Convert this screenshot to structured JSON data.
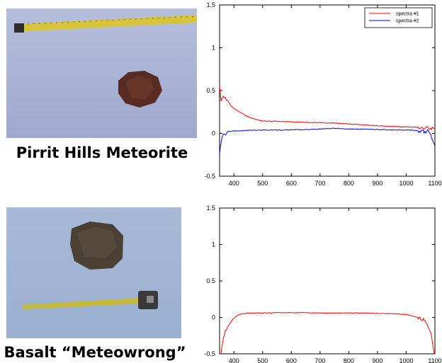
{
  "captions": {
    "top": "Pirrit Hills Meteorite",
    "bottom": "Basalt “Meteowrong”"
  },
  "photos": {
    "top": {
      "background": "#a7b2d3",
      "object_color": "#5a2b22",
      "tape_color": "#d8c63a"
    },
    "bottom": {
      "background": "#a3b5d4",
      "object_color": "#4a4034",
      "tape_color": "#c9bb3a"
    }
  },
  "chart_data": [
    {
      "type": "line",
      "title": "",
      "xlabel": "",
      "ylabel": "",
      "xlim": [
        350,
        1100
      ],
      "ylim": [
        -0.5,
        1.5
      ],
      "xticks": [
        400,
        500,
        600,
        700,
        800,
        900,
        1000,
        1100
      ],
      "yticks": [
        -0.5,
        0,
        0.5,
        1,
        1.5
      ],
      "ytick_labels": [
        "-0.5",
        "0",
        "0.5",
        "1",
        "1.5"
      ],
      "legend_position": "top-right",
      "series": [
        {
          "name": "spectra #1",
          "color": "#ff0000",
          "x": [
            350,
            355,
            360,
            370,
            380,
            390,
            400,
            410,
            420,
            440,
            460,
            480,
            500,
            550,
            600,
            650,
            700,
            750,
            800,
            850,
            900,
            950,
            1000,
            1050,
            1080,
            1100
          ],
          "y": [
            0.55,
            0.38,
            0.42,
            0.4,
            0.37,
            0.32,
            0.29,
            0.27,
            0.25,
            0.21,
            0.18,
            0.16,
            0.145,
            0.14,
            0.135,
            0.13,
            0.125,
            0.12,
            0.11,
            0.1,
            0.09,
            0.08,
            0.075,
            0.07,
            0.06,
            0.05
          ]
        },
        {
          "name": "spectra #2",
          "color": "#0000ff",
          "x": [
            350,
            355,
            360,
            370,
            380,
            400,
            450,
            500,
            550,
            600,
            650,
            700,
            750,
            800,
            850,
            900,
            950,
            1000,
            1050,
            1080,
            1100
          ],
          "y": [
            -0.25,
            -0.1,
            -0.04,
            0.0,
            0.02,
            0.03,
            0.035,
            0.04,
            0.04,
            0.04,
            0.045,
            0.05,
            0.06,
            0.05,
            0.05,
            0.045,
            0.04,
            0.04,
            0.03,
            0.02,
            -0.15
          ]
        }
      ]
    },
    {
      "type": "line",
      "title": "",
      "xlabel": "",
      "ylabel": "",
      "xlim": [
        350,
        1100
      ],
      "ylim": [
        -0.5,
        1.5
      ],
      "xticks": [
        400,
        500,
        600,
        700,
        800,
        900,
        1000,
        1100
      ],
      "yticks": [
        -0.5,
        0,
        0.5,
        1,
        1.5
      ],
      "ytick_labels": [
        "-0.5",
        "0",
        "0.5",
        "1",
        "1.5"
      ],
      "series": [
        {
          "color": "#ff0000",
          "x": [
            355,
            360,
            370,
            380,
            390,
            400,
            410,
            420,
            430,
            440,
            450,
            500,
            550,
            600,
            650,
            700,
            750,
            800,
            850,
            900,
            950,
            1000,
            1020,
            1040,
            1060,
            1070,
            1080,
            1090,
            1095,
            1100
          ],
          "y": [
            -0.5,
            -0.35,
            -0.2,
            -0.12,
            -0.06,
            -0.01,
            0.02,
            0.04,
            0.05,
            0.055,
            0.06,
            0.06,
            0.065,
            0.065,
            0.065,
            0.06,
            0.06,
            0.06,
            0.06,
            0.055,
            0.05,
            0.04,
            0.02,
            0.0,
            -0.03,
            -0.08,
            -0.15,
            -0.3,
            -0.45,
            -0.5
          ]
        }
      ]
    }
  ]
}
